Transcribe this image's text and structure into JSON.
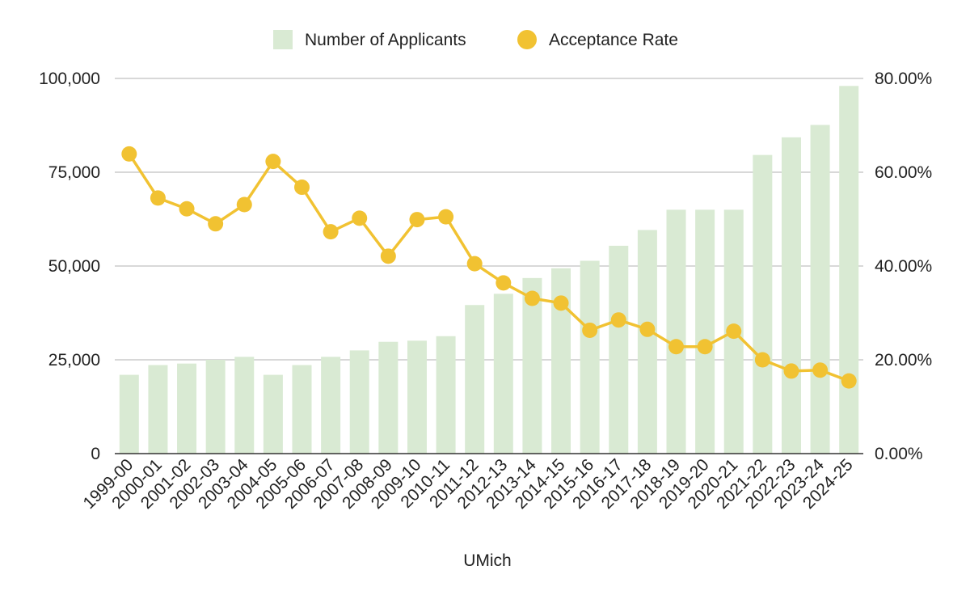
{
  "chart_data": {
    "type": "bar",
    "categories": [
      "1999-00",
      "2000-01",
      "2001-02",
      "2002-03",
      "2003-04",
      "2004-05",
      "2005-06",
      "2006-07",
      "2007-08",
      "2008-09",
      "2009-10",
      "2010-11",
      "2011-12",
      "2012-13",
      "2013-14",
      "2014-15",
      "2015-16",
      "2016-17",
      "2017-18",
      "2018-19",
      "2019-20",
      "2020-21",
      "2021-22",
      "2022-23",
      "2023-24",
      "2024-25"
    ],
    "series": [
      {
        "name": "Number of Applicants",
        "type": "bar",
        "axis": "left",
        "color": "#d9ead3",
        "values": [
          21000,
          23600,
          24000,
          25000,
          25800,
          21000,
          23600,
          25800,
          27500,
          29800,
          30100,
          31300,
          39600,
          42600,
          46800,
          49400,
          51400,
          55400,
          59600,
          65000,
          65000,
          65000,
          79600,
          84300,
          87600,
          98000
        ]
      },
      {
        "name": "Acceptance Rate",
        "type": "line",
        "axis": "right",
        "color": "#f1c232",
        "values": [
          0.639,
          0.545,
          0.522,
          0.49,
          0.531,
          0.623,
          0.568,
          0.473,
          0.502,
          0.421,
          0.499,
          0.505,
          0.405,
          0.364,
          0.331,
          0.321,
          0.263,
          0.285,
          0.265,
          0.228,
          0.228,
          0.261,
          0.2,
          0.176,
          0.178,
          0.155
        ]
      }
    ],
    "xlabel": "UMich",
    "ylabel": "",
    "ylabel_right": "",
    "ylim": [
      0,
      100000
    ],
    "ylim_right": [
      0,
      0.8
    ],
    "yticks_left": [
      "0",
      "25,000",
      "50,000",
      "75,000",
      "100,000"
    ],
    "yticks_right": [
      "0.00%",
      "20.00%",
      "40.00%",
      "60.00%",
      "80.00%"
    ],
    "grid": true,
    "legend_position": "top"
  }
}
